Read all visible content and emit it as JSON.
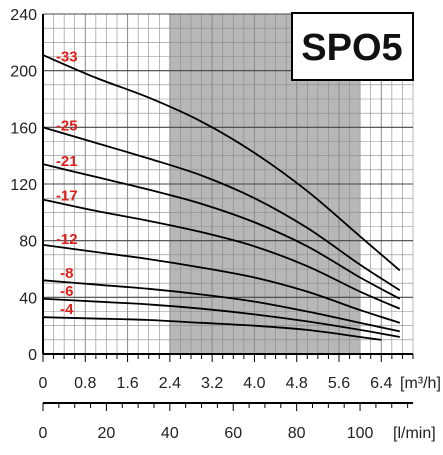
{
  "chart_data": {
    "type": "line",
    "title": "SPO5",
    "y_axis": {
      "range": [
        0,
        240
      ],
      "ticks": [
        "0",
        "40",
        "80",
        "120",
        "160",
        "200",
        "240"
      ]
    },
    "x_axis_flow_m3h": {
      "unit_label": "[m³/h]",
      "range": [
        0,
        7.0
      ],
      "ticks": [
        "0",
        "0.8",
        "1.6",
        "2.4",
        "3.2",
        "4.0",
        "4.8",
        "5.6",
        "6.4"
      ]
    },
    "x_axis_flow_lmin": {
      "unit_label": "[l/min]",
      "range": [
        0,
        116.7
      ],
      "ticks": [
        "0",
        "20",
        "40",
        "60",
        "80",
        "100"
      ]
    },
    "shaded_region_m3h": [
      2.4,
      6.0
    ],
    "grid": true,
    "series": [
      {
        "name": "-33",
        "x": [
          0,
          1.0,
          2.0,
          3.0,
          4.0,
          5.0,
          6.0,
          6.75
        ],
        "y": [
          211,
          195,
          181,
          164,
          142,
          115,
          83,
          59
        ]
      },
      {
        "name": "-25",
        "x": [
          0,
          1.0,
          2.0,
          3.0,
          4.0,
          5.0,
          6.0,
          6.75
        ],
        "y": [
          160,
          149,
          138,
          126,
          110,
          89,
          63,
          45
        ]
      },
      {
        "name": "-21",
        "x": [
          0,
          1.0,
          2.0,
          3.0,
          4.0,
          5.0,
          6.0,
          6.75
        ],
        "y": [
          134,
          125,
          116,
          106,
          93,
          76,
          54,
          39
        ]
      },
      {
        "name": "-17",
        "x": [
          0,
          1.0,
          2.0,
          3.0,
          4.0,
          5.0,
          6.0,
          6.75
        ],
        "y": [
          109,
          101,
          94,
          86,
          76,
          62,
          44,
          32
        ]
      },
      {
        "name": "-12",
        "x": [
          0,
          1.0,
          2.0,
          3.0,
          4.0,
          5.0,
          6.0,
          6.75
        ],
        "y": [
          77,
          72,
          67,
          61,
          54,
          44,
          31,
          22
        ]
      },
      {
        "name": "-8",
        "x": [
          0,
          1.0,
          2.0,
          3.0,
          4.0,
          5.0,
          6.0,
          6.75
        ],
        "y": [
          52,
          49,
          46,
          42,
          37,
          30,
          22,
          16
        ]
      },
      {
        "name": "-6",
        "x": [
          0,
          1.0,
          2.0,
          3.0,
          4.0,
          5.0,
          6.0,
          6.75
        ],
        "y": [
          39,
          37,
          35,
          32,
          28,
          23,
          17,
          12
        ]
      },
      {
        "name": "-4",
        "x": [
          0,
          1.0,
          2.0,
          3.0,
          4.0,
          5.0,
          6.0,
          6.4
        ],
        "y": [
          26,
          25,
          24,
          22,
          20,
          17,
          12,
          10
        ]
      }
    ],
    "colors": {
      "curve": "#000000",
      "curve_label": "#e0201a",
      "shade": "#b7b7b7",
      "grid": "#8a8a8a"
    }
  }
}
